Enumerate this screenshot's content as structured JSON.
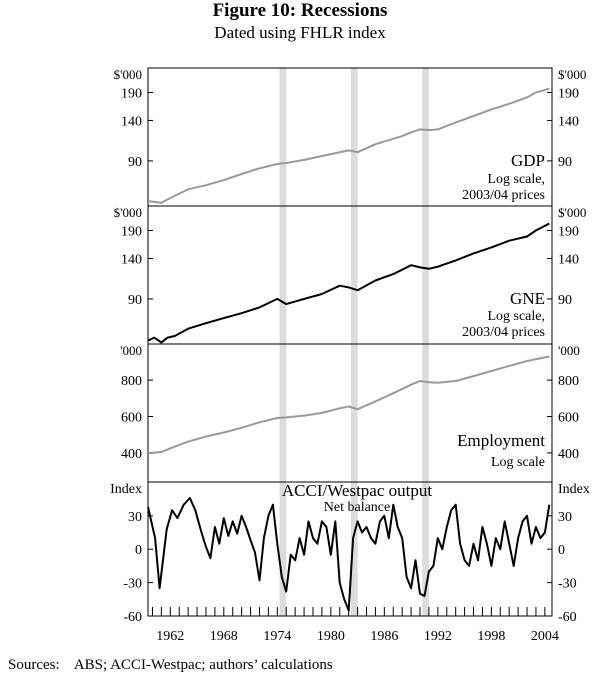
{
  "title": "Figure 10: Recessions",
  "subtitle": "Dated using FHLR index",
  "sources": "Sources:    ABS; ACCI-Westpac; authors’ calculations",
  "colors": {
    "gdp": "#9a9a9a",
    "gne": "#000000",
    "employment": "#9a9a9a",
    "survey": "#000000",
    "recession": "#dcdcdc",
    "axis": "#000000"
  },
  "chart_data": [
    {
      "id": "gdp",
      "type": "line",
      "name": "GDP",
      "notes": [
        "Log scale,",
        "2003/04 prices"
      ],
      "unit_label": "$'000",
      "ticks": [
        90,
        140,
        190
      ],
      "scale": "log",
      "ylim": [
        55,
        230
      ],
      "x": [
        1959.5,
        1961,
        1962,
        1963,
        1964,
        1966,
        1968,
        1970,
        1972,
        1974,
        1975,
        1977,
        1979,
        1980,
        1982,
        1983,
        1985,
        1988,
        1989,
        1990,
        1991,
        1992,
        1994,
        1996,
        1998,
        2000,
        2002,
        2003,
        2004.5
      ],
      "values": [
        58,
        57,
        60,
        63,
        66,
        69,
        73,
        78,
        83,
        87,
        88,
        91,
        95,
        97,
        101,
        99,
        108,
        118,
        123,
        127,
        126,
        127,
        137,
        147,
        158,
        168,
        180,
        190,
        198
      ]
    },
    {
      "id": "gne",
      "type": "line",
      "name": "GNE",
      "notes": [
        "Log scale,",
        "2003/04 prices"
      ],
      "unit_label": "$'000",
      "ticks": [
        90,
        140,
        190
      ],
      "scale": "log",
      "ylim": [
        55,
        230
      ],
      "x": [
        1959.5,
        1960.2,
        1961,
        1961.7,
        1962.5,
        1964,
        1966,
        1968,
        1970,
        1972,
        1974,
        1975,
        1977,
        1979,
        1981,
        1982,
        1983,
        1985,
        1987,
        1989,
        1990,
        1991,
        1992,
        1994,
        1996,
        1998,
        2000,
        2002,
        2003,
        2004.5
      ],
      "values": [
        57,
        59,
        56,
        59,
        60,
        65,
        69,
        73,
        77,
        82,
        90,
        85,
        90,
        95,
        104,
        102,
        99,
        110,
        118,
        130,
        127,
        125,
        128,
        137,
        148,
        158,
        170,
        178,
        190,
        205
      ]
    },
    {
      "id": "employment",
      "type": "line",
      "name": "Employment",
      "notes": [
        "Log scale"
      ],
      "unit_label": "'000",
      "ticks": [
        400,
        600,
        800
      ],
      "scale": "linear",
      "ylim": [
        240,
        960
      ],
      "x": [
        1959.5,
        1961,
        1962,
        1964,
        1966,
        1968,
        1970,
        1972,
        1974,
        1975,
        1977,
        1979,
        1981,
        1982,
        1983,
        1985,
        1987,
        1989,
        1990,
        1991,
        1992,
        1994,
        1996,
        1998,
        2000,
        2002,
        2004.5
      ],
      "values": [
        398,
        405,
        425,
        462,
        490,
        512,
        538,
        568,
        592,
        595,
        605,
        620,
        645,
        655,
        640,
        683,
        728,
        775,
        795,
        788,
        785,
        795,
        822,
        850,
        878,
        905,
        930
      ]
    },
    {
      "id": "survey",
      "type": "line",
      "name": "ACCI/Westpac output",
      "notes": [
        "Net balance"
      ],
      "unit_label": "Index",
      "ticks": [
        -60,
        -30,
        0,
        30
      ],
      "scale": "linear",
      "ylim": [
        -60,
        55
      ],
      "x": [
        1959.5,
        1960.3,
        1960.8,
        1961.6,
        1962.2,
        1962.8,
        1963.5,
        1964.2,
        1964.8,
        1965.5,
        1966,
        1966.5,
        1967,
        1967.5,
        1968,
        1968.5,
        1969,
        1969.5,
        1970,
        1970.5,
        1971,
        1971.5,
        1972,
        1972.5,
        1973,
        1973.5,
        1974,
        1974.5,
        1975,
        1975.5,
        1976,
        1976.5,
        1977,
        1977.5,
        1978,
        1978.5,
        1979,
        1979.5,
        1980,
        1980.5,
        1981,
        1981.5,
        1982,
        1982.5,
        1983,
        1983.5,
        1984,
        1984.5,
        1985,
        1985.5,
        1986,
        1986.5,
        1987,
        1987.5,
        1988,
        1988.5,
        1989,
        1989.5,
        1990,
        1990.5,
        1991,
        1991.5,
        1992,
        1992.5,
        1993,
        1993.5,
        1994,
        1994.5,
        1995,
        1995.5,
        1996,
        1996.5,
        1997,
        1997.5,
        1998,
        1998.5,
        1999,
        1999.5,
        2000,
        2000.5,
        2001,
        2001.5,
        2002,
        2002.5,
        2003,
        2003.5,
        2004,
        2004.5
      ],
      "values": [
        38,
        10,
        -35,
        18,
        35,
        28,
        40,
        46,
        35,
        15,
        2,
        -8,
        20,
        5,
        28,
        12,
        25,
        14,
        30,
        20,
        8,
        -3,
        -28,
        10,
        30,
        40,
        5,
        -25,
        -38,
        -5,
        -10,
        10,
        -5,
        25,
        10,
        5,
        25,
        20,
        -5,
        25,
        -30,
        -45,
        -55,
        10,
        25,
        15,
        20,
        10,
        5,
        25,
        30,
        10,
        40,
        20,
        10,
        -25,
        -35,
        -10,
        -40,
        -42,
        -20,
        -15,
        10,
        0,
        20,
        35,
        40,
        5,
        -10,
        -15,
        5,
        -10,
        20,
        5,
        -15,
        10,
        0,
        25,
        5,
        -15,
        10,
        25,
        30,
        5,
        20,
        10,
        15,
        40
      ]
    }
  ],
  "axis": {
    "xlim": [
      1959.5,
      2004.8
    ],
    "x_tick_labels": [
      "1962",
      "1968",
      "1974",
      "1980",
      "1986",
      "1992",
      "1998",
      "2004"
    ],
    "x_tick_years": [
      1962,
      1968,
      1974,
      1980,
      1986,
      1992,
      1998,
      2004
    ],
    "recessions": [
      [
        1974.25,
        1975.0
      ],
      [
        1982.25,
        1983.0
      ],
      [
        1990.25,
        1991.0
      ]
    ]
  }
}
